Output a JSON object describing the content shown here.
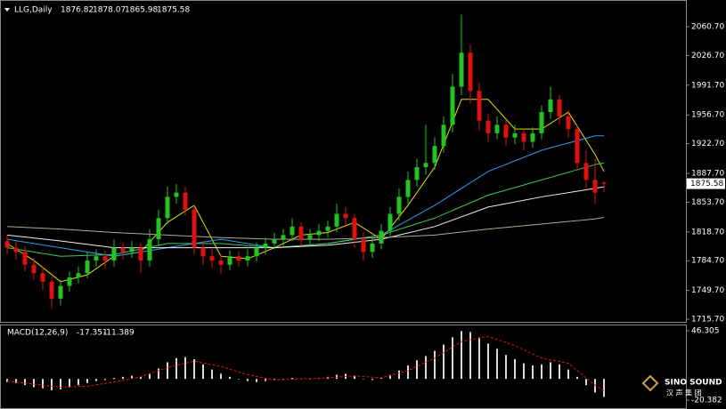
{
  "chart_data": [
    {
      "type": "candlestick",
      "title": "LLG,Daily",
      "up_color": "#22c322",
      "down_color": "#e01010",
      "open": [
        1808,
        1800,
        1795,
        1780,
        1770,
        1760,
        1740,
        1755,
        1765,
        1770,
        1785,
        1790,
        1785,
        1800,
        1795,
        1800,
        1785,
        1810,
        1835,
        1860,
        1865,
        1845,
        1800,
        1790,
        1785,
        1780,
        1790,
        1785,
        1790,
        1800,
        1805,
        1810,
        1815,
        1825,
        1810,
        1815,
        1820,
        1825,
        1840,
        1835,
        1810,
        1795,
        1805,
        1820,
        1840,
        1860,
        1880,
        1895,
        1900,
        1920,
        1945,
        1990,
        2030,
        1985,
        1950,
        1935,
        1945,
        1930,
        1935,
        1925,
        1935,
        1960,
        1975,
        1955,
        1940,
        1900,
        1880,
        1876.82
      ],
      "high": [
        1815,
        1808,
        1802,
        1788,
        1778,
        1766,
        1762,
        1772,
        1778,
        1795,
        1798,
        1797,
        1810,
        1806,
        1808,
        1806,
        1822,
        1845,
        1872,
        1875,
        1872,
        1850,
        1808,
        1798,
        1792,
        1797,
        1796,
        1798,
        1806,
        1812,
        1818,
        1822,
        1835,
        1830,
        1822,
        1828,
        1832,
        1852,
        1848,
        1840,
        1818,
        1812,
        1828,
        1848,
        1870,
        1890,
        1905,
        1945,
        1930,
        1955,
        2005,
        2075,
        2040,
        1995,
        1958,
        1955,
        1950,
        1945,
        1940,
        1942,
        1968,
        1990,
        1980,
        1962,
        1945,
        1915,
        1905,
        1878.07
      ],
      "low": [
        1792,
        1786,
        1772,
        1762,
        1750,
        1728,
        1732,
        1748,
        1758,
        1764,
        1778,
        1776,
        1778,
        1786,
        1788,
        1770,
        1778,
        1802,
        1828,
        1852,
        1838,
        1792,
        1780,
        1776,
        1770,
        1774,
        1778,
        1778,
        1784,
        1792,
        1798,
        1802,
        1808,
        1802,
        1804,
        1808,
        1812,
        1818,
        1826,
        1800,
        1785,
        1788,
        1798,
        1812,
        1832,
        1852,
        1872,
        1886,
        1892,
        1912,
        1936,
        1980,
        1970,
        1938,
        1925,
        1928,
        1920,
        1922,
        1915,
        1918,
        1928,
        1952,
        1945,
        1930,
        1890,
        1870,
        1852,
        1865.98
      ],
      "close": [
        1800,
        1795,
        1780,
        1770,
        1760,
        1740,
        1755,
        1765,
        1770,
        1785,
        1790,
        1785,
        1800,
        1795,
        1800,
        1785,
        1810,
        1835,
        1860,
        1865,
        1845,
        1800,
        1790,
        1785,
        1780,
        1790,
        1785,
        1790,
        1800,
        1805,
        1810,
        1815,
        1825,
        1810,
        1815,
        1820,
        1825,
        1840,
        1835,
        1810,
        1795,
        1805,
        1820,
        1840,
        1860,
        1880,
        1895,
        1900,
        1920,
        1945,
        1990,
        2030,
        1985,
        1950,
        1935,
        1945,
        1930,
        1935,
        1925,
        1935,
        1960,
        1975,
        1955,
        1940,
        1900,
        1880,
        1865,
        1875.58
      ],
      "ma": [
        {
          "color": "#e8e000",
          "x": [
            0,
            3,
            6,
            9,
            12,
            15,
            18,
            21,
            24,
            27,
            30,
            33,
            36,
            39,
            42,
            45,
            48,
            51,
            54,
            57,
            60,
            63,
            66,
            67
          ],
          "values": [
            1805,
            1785,
            1760,
            1768,
            1790,
            1795,
            1830,
            1850,
            1790,
            1787,
            1800,
            1815,
            1818,
            1830,
            1810,
            1850,
            1895,
            1975,
            1975,
            1940,
            1940,
            1960,
            1910,
            1890
          ]
        },
        {
          "color": "#2a9df0",
          "x": [
            0,
            6,
            12,
            18,
            24,
            30,
            36,
            42,
            48,
            54,
            60,
            66,
            67
          ],
          "values": [
            1810,
            1800,
            1790,
            1800,
            1810,
            1800,
            1805,
            1815,
            1850,
            1890,
            1915,
            1932,
            1932
          ]
        },
        {
          "color": "#3cc85a",
          "x": [
            0,
            6,
            12,
            18,
            24,
            30,
            36,
            42,
            48,
            54,
            60,
            66,
            67
          ],
          "values": [
            1800,
            1790,
            1792,
            1805,
            1805,
            1800,
            1805,
            1815,
            1835,
            1862,
            1880,
            1898,
            1900
          ]
        },
        {
          "color": "#f0f0f0",
          "x": [
            0,
            6,
            12,
            18,
            24,
            30,
            36,
            42,
            48,
            54,
            60,
            66,
            67
          ],
          "values": [
            1815,
            1808,
            1800,
            1800,
            1800,
            1800,
            1803,
            1810,
            1825,
            1848,
            1860,
            1870,
            1872
          ]
        },
        {
          "color": "#b4a890",
          "x": [
            0,
            6,
            12,
            18,
            24,
            30,
            36,
            42,
            48,
            54,
            60,
            66,
            67
          ],
          "values": [
            1825,
            1822,
            1818,
            1815,
            1812,
            1810,
            1810,
            1812,
            1815,
            1822,
            1828,
            1834,
            1836
          ]
        }
      ],
      "ylim": [
        1712.6,
        2092.2
      ],
      "yticks": [
        {
          "value": 2060.7,
          "label": "2060.70"
        },
        {
          "value": 2026.7,
          "label": "2026.70"
        },
        {
          "value": 1991.7,
          "label": "1991.70"
        },
        {
          "value": 1956.7,
          "label": "1956.70"
        },
        {
          "value": 1922.7,
          "label": "1922.70"
        },
        {
          "value": 1887.7,
          "label": "1887.70"
        },
        {
          "value": 1853.7,
          "label": "1853.70"
        },
        {
          "value": 1818.7,
          "label": "1818.70"
        },
        {
          "value": 1784.7,
          "label": "1784.70"
        },
        {
          "value": 1749.7,
          "label": "1749.70"
        },
        {
          "value": 1715.7,
          "label": "1715.70"
        }
      ]
    },
    {
      "type": "macd",
      "title": "MACD(12,26,9)",
      "bar_color": "#d8d8d8",
      "signal_color": "#e01010",
      "values": [
        -3,
        -4,
        -6,
        -8,
        -9,
        -11,
        -10,
        -8,
        -6,
        -4,
        -2,
        -1,
        1,
        2,
        3,
        2,
        5,
        10,
        16,
        20,
        21,
        19,
        14,
        9,
        5,
        2,
        0,
        -2,
        -3,
        -2,
        -1,
        0,
        1,
        0,
        0,
        1,
        2,
        4,
        5,
        3,
        0,
        -1,
        1,
        4,
        8,
        13,
        18,
        22,
        27,
        33,
        40,
        46,
        45,
        40,
        34,
        29,
        23,
        19,
        15,
        13,
        14,
        16,
        14,
        9,
        2,
        -6,
        -13,
        -17.351
      ],
      "signal": {
        "x": [
          0,
          3,
          6,
          9,
          12,
          15,
          18,
          21,
          24,
          27,
          30,
          33,
          36,
          39,
          42,
          45,
          48,
          51,
          54,
          57,
          60,
          63,
          66,
          67
        ],
        "values": [
          -2,
          -5,
          -8,
          -7,
          -3,
          2,
          11,
          17,
          12,
          4,
          -1,
          0,
          1,
          3,
          1,
          8,
          20,
          36,
          41,
          32,
          20,
          15,
          -6,
          -11.389
        ]
      },
      "ylim": [
        -28.93,
        52.29
      ],
      "yticks": [
        46.305,
        -20.382
      ]
    }
  ],
  "logo": {
    "name": "SINO SOUND",
    "subtitle": "汉 声 集 团"
  }
}
